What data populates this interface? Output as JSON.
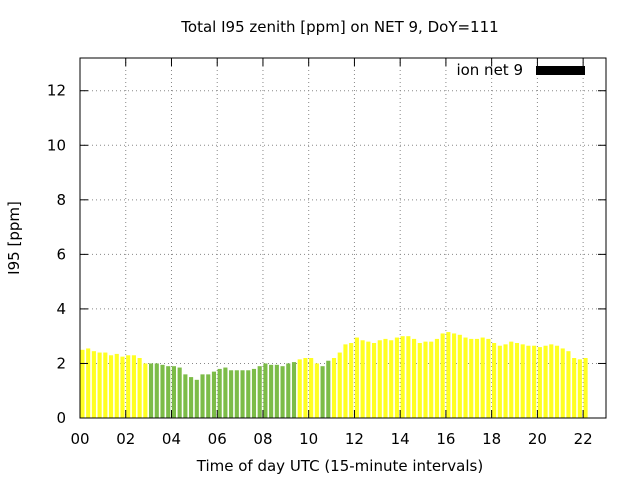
{
  "chart_data": {
    "type": "bar",
    "title": "Total I95 zenith [ppm] on NET 9, DoY=111",
    "xlabel": "Time of day UTC (15-minute intervals)",
    "ylabel": "I95 [ppm]",
    "xlim": [
      0,
      23
    ],
    "ylim": [
      0,
      13.2
    ],
    "x_ticks": [
      "00",
      "02",
      "04",
      "06",
      "08",
      "10",
      "12",
      "14",
      "16",
      "18",
      "20",
      "22"
    ],
    "y_ticks": [
      "0",
      "2",
      "4",
      "6",
      "8",
      "10",
      "12"
    ],
    "grid": true,
    "legend": {
      "placement": "top-right",
      "entries": [
        {
          "name": "ion net 9",
          "color": "#000000"
        }
      ]
    },
    "interval_hours": 0.25,
    "start_time": "00:00",
    "series": [
      {
        "name": "ion net 9",
        "values": [
          2.5,
          2.55,
          2.45,
          2.4,
          2.4,
          2.3,
          2.35,
          2.25,
          2.3,
          2.3,
          2.2,
          2.0,
          2.0,
          2.0,
          1.95,
          1.9,
          1.9,
          1.85,
          1.6,
          1.5,
          1.4,
          1.6,
          1.6,
          1.7,
          1.8,
          1.85,
          1.75,
          1.75,
          1.75,
          1.75,
          1.8,
          1.9,
          2.0,
          1.95,
          1.95,
          1.9,
          2.0,
          2.05,
          2.15,
          2.2,
          2.2,
          2.0,
          1.9,
          2.1,
          2.2,
          2.4,
          2.7,
          2.75,
          2.95,
          2.85,
          2.8,
          2.75,
          2.85,
          2.9,
          2.85,
          2.95,
          3.0,
          3.0,
          2.9,
          2.75,
          2.8,
          2.8,
          2.9,
          3.1,
          3.15,
          3.1,
          3.05,
          2.95,
          2.9,
          2.9,
          2.95,
          2.9,
          2.75,
          2.65,
          2.7,
          2.8,
          2.75,
          2.7,
          2.65,
          2.65,
          2.6,
          2.65,
          2.7,
          2.65,
          2.55,
          2.45,
          2.2,
          2.15,
          2.2
        ]
      }
    ],
    "colors": {
      "default_bar": "#ffff22",
      "highlight_bar": "#7cbc48",
      "legend_swatch": "#000000",
      "grid": "#888888",
      "frame": "#000000"
    },
    "highlight_ranges_hours": [
      [
        3.0,
        9.5
      ],
      [
        10.5,
        11.0
      ]
    ]
  }
}
